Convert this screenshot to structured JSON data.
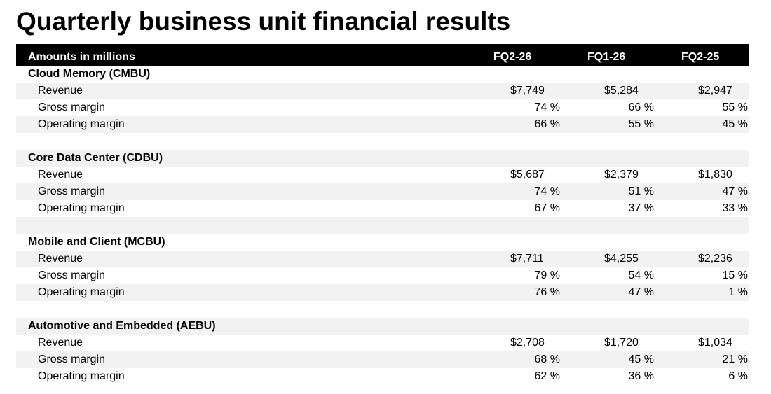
{
  "title": "Quarterly business unit financial results",
  "header": {
    "label": "Amounts in millions",
    "columns": [
      "FQ2-26",
      "FQ1-26",
      "FQ2-25"
    ]
  },
  "segments": [
    {
      "name": "Cloud Memory (CMBU)",
      "revenue_label": "Revenue",
      "revenue": [
        "$7,749",
        "$5,284",
        "$2,947"
      ],
      "gross_label": "Gross margin",
      "gross": [
        "74 %",
        "66 %",
        "55 %"
      ],
      "operating_label": "Operating margin",
      "operating": [
        "66 %",
        "55 %",
        "45 %"
      ]
    },
    {
      "name": "Core Data Center (CDBU)",
      "revenue_label": "Revenue",
      "revenue": [
        "$5,687",
        "$2,379",
        "$1,830"
      ],
      "gross_label": "Gross margin",
      "gross": [
        "74 %",
        "51 %",
        "47 %"
      ],
      "operating_label": "Operating margin",
      "operating": [
        "67 %",
        "37 %",
        "33 %"
      ]
    },
    {
      "name": "Mobile and Client (MCBU)",
      "revenue_label": "Revenue",
      "revenue": [
        "$7,711",
        "$4,255",
        "$2,236"
      ],
      "gross_label": "Gross margin",
      "gross": [
        "79 %",
        "54 %",
        "15 %"
      ],
      "operating_label": "Operating margin",
      "operating": [
        "76 %",
        "47 %",
        "1 %"
      ]
    },
    {
      "name": "Automotive and Embedded (AEBU)",
      "revenue_label": "Revenue",
      "revenue": [
        "$2,708",
        "$1,720",
        "$1,034"
      ],
      "gross_label": "Gross margin",
      "gross": [
        "68 %",
        "45 %",
        "21 %"
      ],
      "operating_label": "Operating margin",
      "operating": [
        "62 %",
        "36 %",
        "6 %"
      ]
    }
  ]
}
